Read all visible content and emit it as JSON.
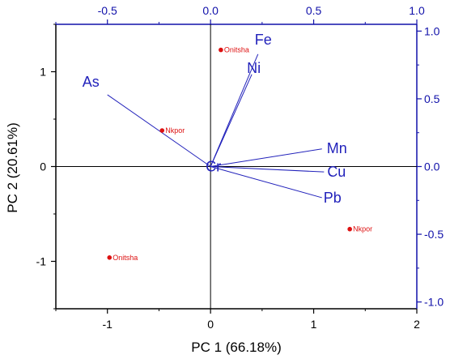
{
  "chart_data": {
    "type": "scatter",
    "xlabel": "PC 1 (66.18%)",
    "ylabel": "PC 2 (20.61%)",
    "xlim": [
      -1.5,
      2
    ],
    "ylim": [
      -1.5,
      1.5
    ],
    "x_ticks": [
      -1,
      0,
      1,
      2
    ],
    "y_ticks": [
      -1,
      0,
      1
    ],
    "top_axis": {
      "range": [
        -0.75,
        1.0
      ],
      "ticks": [
        -0.5,
        0.0,
        0.5,
        1.0
      ],
      "tick_labels": [
        "-0.5",
        "0.0",
        "0.5",
        "1.0"
      ]
    },
    "right_axis": {
      "range": [
        -1.05,
        1.05
      ],
      "ticks": [
        -1.0,
        -0.5,
        0.0,
        0.5,
        1.0
      ],
      "tick_labels": [
        "-1.0",
        "-0.5",
        "0.0",
        "0.5",
        "1.0"
      ]
    },
    "observations": [
      {
        "label": "Onitsha",
        "x": 0.1,
        "y": 1.23
      },
      {
        "label": "Nkpor",
        "x": -0.47,
        "y": 0.38
      },
      {
        "label": "Onitsha",
        "x": -0.98,
        "y": -0.96
      },
      {
        "label": "Nkpor",
        "x": 1.35,
        "y": -0.66
      }
    ],
    "loadings": [
      {
        "label": "As",
        "x": -0.5,
        "y": 0.53
      },
      {
        "label": "Fe",
        "x": 0.23,
        "y": 0.83
      },
      {
        "label": "Ni",
        "x": 0.2,
        "y": 0.68
      },
      {
        "label": "Mn",
        "x": 0.54,
        "y": 0.13
      },
      {
        "label": "Cu",
        "x": 0.55,
        "y": -0.04
      },
      {
        "label": "Pb",
        "x": 0.54,
        "y": -0.23
      },
      {
        "label": "Cr",
        "x": 0.0,
        "y": 0.0
      }
    ],
    "grid": false,
    "zero_lines": true,
    "colors": {
      "observation": "#dd1111",
      "loading": "#2222bb",
      "axis_secondary": "#1111aa"
    }
  }
}
